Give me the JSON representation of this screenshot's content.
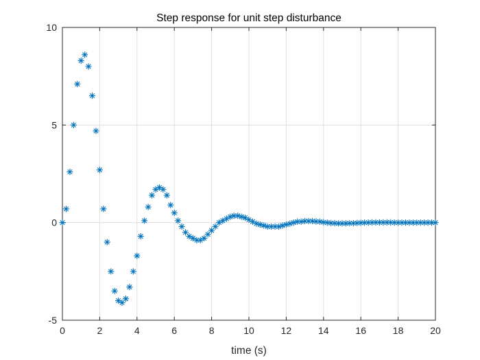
{
  "chart_data": {
    "type": "scatter",
    "title": "Step response for unit step disturbance",
    "xlabel": "time (s)",
    "ylabel": "",
    "xlim": [
      0,
      20
    ],
    "ylim": [
      -5,
      10
    ],
    "xticks": [
      0,
      2,
      4,
      6,
      8,
      10,
      12,
      14,
      16,
      18,
      20
    ],
    "yticks": [
      -5,
      0,
      5,
      10
    ],
    "xtick_labels": [
      "0",
      "2",
      "4",
      "6",
      "8",
      "10",
      "12",
      "14",
      "16",
      "18",
      "20"
    ],
    "ytick_labels": [
      "-5",
      "0",
      "5",
      "10"
    ],
    "grid": true,
    "marker": "asterisk",
    "colors": {
      "series": "#0072BD",
      "grid": "#DFDFDF",
      "axis": "#262626",
      "background": "#FFFFFF"
    },
    "series": [
      {
        "x": [
          0.0,
          0.2,
          0.4,
          0.6,
          0.8,
          1.0,
          1.2,
          1.4,
          1.6,
          1.8,
          2.0,
          2.2,
          2.4,
          2.6,
          2.8,
          3.0,
          3.2,
          3.4,
          3.6,
          3.8,
          4.0,
          4.2,
          4.4,
          4.6,
          4.8,
          5.0,
          5.2,
          5.4,
          5.6,
          5.8,
          6.0,
          6.2,
          6.4,
          6.6,
          6.8,
          7.0,
          7.2,
          7.4,
          7.6,
          7.8,
          8.0,
          8.2,
          8.4,
          8.6,
          8.8,
          9.0,
          9.2,
          9.4,
          9.6,
          9.8,
          10.0,
          10.2,
          10.4,
          10.6,
          10.8,
          11.0,
          11.2,
          11.4,
          11.6,
          11.8,
          12.0,
          12.2,
          12.4,
          12.6,
          12.8,
          13.0,
          13.2,
          13.4,
          13.6,
          13.8,
          14.0,
          14.2,
          14.4,
          14.6,
          14.8,
          15.0,
          15.2,
          15.4,
          15.6,
          15.8,
          16.0,
          16.2,
          16.4,
          16.6,
          16.8,
          17.0,
          17.2,
          17.4,
          17.6,
          17.8,
          18.0,
          18.2,
          18.4,
          18.6,
          18.8,
          19.0,
          19.2,
          19.4,
          19.6,
          19.8,
          20.0
        ],
        "y": [
          0.0,
          0.7,
          2.6,
          5.0,
          7.1,
          8.3,
          8.6,
          8.0,
          6.5,
          4.7,
          2.7,
          0.7,
          -1.0,
          -2.5,
          -3.5,
          -4.0,
          -4.1,
          -3.9,
          -3.3,
          -2.5,
          -1.7,
          -0.7,
          0.1,
          0.8,
          1.4,
          1.7,
          1.8,
          1.7,
          1.4,
          0.9,
          0.5,
          0.1,
          -0.2,
          -0.5,
          -0.7,
          -0.8,
          -0.9,
          -0.9,
          -0.8,
          -0.6,
          -0.4,
          -0.2,
          0.0,
          0.1,
          0.2,
          0.3,
          0.35,
          0.35,
          0.3,
          0.25,
          0.15,
          0.05,
          -0.05,
          -0.1,
          -0.15,
          -0.2,
          -0.2,
          -0.2,
          -0.2,
          -0.15,
          -0.1,
          -0.05,
          0.0,
          0.05,
          0.05,
          0.08,
          0.08,
          0.08,
          0.06,
          0.05,
          0.02,
          0.0,
          -0.02,
          -0.03,
          -0.04,
          -0.04,
          -0.04,
          -0.03,
          -0.03,
          -0.02,
          -0.01,
          0.0,
          0.0,
          0.01,
          0.01,
          0.01,
          0.01,
          0.01,
          0.01,
          0.0,
          0.0,
          0.0,
          0.0,
          0.0,
          0.0,
          0.0,
          0.0,
          0.0,
          0.0,
          0.0,
          0.0
        ]
      }
    ]
  }
}
